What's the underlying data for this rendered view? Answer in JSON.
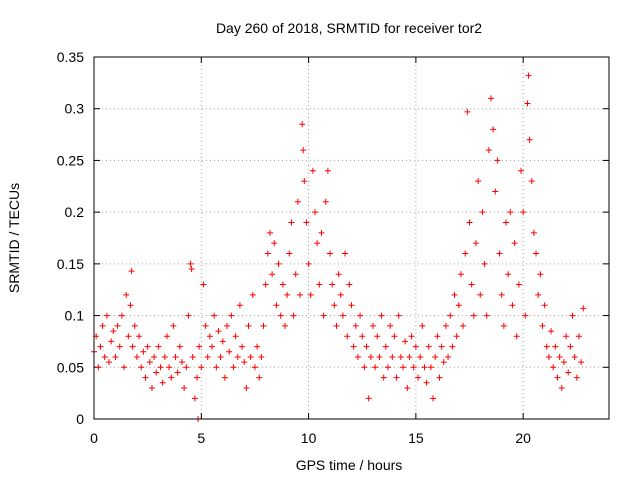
{
  "chart_data": {
    "type": "scatter",
    "title": "Day 260 of 2018, SRMTID for receiver tor2",
    "xlabel": "GPS time / hours",
    "ylabel": "SRMTID / TECUs",
    "xlim": [
      0,
      24
    ],
    "ylim": [
      0,
      0.35
    ],
    "xticks": [
      0,
      5,
      10,
      15,
      20
    ],
    "xtick_labels": [
      "0",
      "5",
      "10",
      "15",
      "20"
    ],
    "yticks": [
      0,
      0.05,
      0.1,
      0.15,
      0.2,
      0.25,
      0.3,
      0.35
    ],
    "ytick_labels": [
      "0",
      "0.05",
      "0.1",
      "0.15",
      "0.2",
      "0.25",
      "0.3",
      "0.35"
    ],
    "grid": true,
    "marker": "+",
    "color": "#ff0000",
    "series": [
      {
        "name": "SRMTID",
        "points": [
          [
            0.0,
            0.065
          ],
          [
            0.1,
            0.08
          ],
          [
            0.2,
            0.05
          ],
          [
            0.3,
            0.07
          ],
          [
            0.4,
            0.09
          ],
          [
            0.5,
            0.06
          ],
          [
            0.6,
            0.1
          ],
          [
            0.7,
            0.055
          ],
          [
            0.8,
            0.075
          ],
          [
            0.9,
            0.085
          ],
          [
            1.0,
            0.06
          ],
          [
            1.1,
            0.09
          ],
          [
            1.2,
            0.07
          ],
          [
            1.3,
            0.1
          ],
          [
            1.4,
            0.05
          ],
          [
            1.5,
            0.12
          ],
          [
            1.6,
            0.08
          ],
          [
            1.7,
            0.11
          ],
          [
            1.75,
            0.143
          ],
          [
            1.8,
            0.07
          ],
          [
            1.9,
            0.09
          ],
          [
            2.0,
            0.06
          ],
          [
            2.1,
            0.08
          ],
          [
            2.2,
            0.05
          ],
          [
            2.3,
            0.065
          ],
          [
            2.4,
            0.04
          ],
          [
            2.5,
            0.07
          ],
          [
            2.6,
            0.055
          ],
          [
            2.7,
            0.03
          ],
          [
            2.8,
            0.06
          ],
          [
            2.9,
            0.045
          ],
          [
            3.0,
            0.07
          ],
          [
            3.1,
            0.05
          ],
          [
            3.2,
            0.035
          ],
          [
            3.3,
            0.06
          ],
          [
            3.4,
            0.08
          ],
          [
            3.5,
            0.05
          ],
          [
            3.6,
            0.04
          ],
          [
            3.7,
            0.09
          ],
          [
            3.8,
            0.06
          ],
          [
            3.9,
            0.045
          ],
          [
            4.0,
            0.07
          ],
          [
            4.1,
            0.055
          ],
          [
            4.2,
            0.03
          ],
          [
            4.3,
            0.05
          ],
          [
            4.4,
            0.1
          ],
          [
            4.5,
            0.15
          ],
          [
            4.55,
            0.145
          ],
          [
            4.6,
            0.06
          ],
          [
            4.7,
            0.02
          ],
          [
            4.8,
            0.04
          ],
          [
            4.85,
            0.0
          ],
          [
            4.9,
            0.07
          ],
          [
            5.0,
            0.05
          ],
          [
            5.1,
            0.13
          ],
          [
            5.2,
            0.09
          ],
          [
            5.3,
            0.06
          ],
          [
            5.4,
            0.08
          ],
          [
            5.5,
            0.07
          ],
          [
            5.6,
            0.1
          ],
          [
            5.7,
            0.05
          ],
          [
            5.8,
            0.085
          ],
          [
            5.9,
            0.06
          ],
          [
            6.0,
            0.075
          ],
          [
            6.1,
            0.04
          ],
          [
            6.2,
            0.09
          ],
          [
            6.3,
            0.065
          ],
          [
            6.4,
            0.1
          ],
          [
            6.5,
            0.05
          ],
          [
            6.6,
            0.08
          ],
          [
            6.7,
            0.06
          ],
          [
            6.8,
            0.11
          ],
          [
            6.9,
            0.07
          ],
          [
            7.0,
            0.055
          ],
          [
            7.1,
            0.03
          ],
          [
            7.2,
            0.09
          ],
          [
            7.3,
            0.06
          ],
          [
            7.4,
            0.12
          ],
          [
            7.5,
            0.05
          ],
          [
            7.6,
            0.07
          ],
          [
            7.7,
            0.04
          ],
          [
            7.8,
            0.06
          ],
          [
            7.9,
            0.09
          ],
          [
            8.0,
            0.13
          ],
          [
            8.1,
            0.16
          ],
          [
            8.2,
            0.18
          ],
          [
            8.3,
            0.14
          ],
          [
            8.4,
            0.17
          ],
          [
            8.5,
            0.11
          ],
          [
            8.6,
            0.15
          ],
          [
            8.7,
            0.1
          ],
          [
            8.8,
            0.13
          ],
          [
            8.9,
            0.09
          ],
          [
            9.0,
            0.12
          ],
          [
            9.1,
            0.16
          ],
          [
            9.2,
            0.19
          ],
          [
            9.3,
            0.1
          ],
          [
            9.4,
            0.14
          ],
          [
            9.5,
            0.21
          ],
          [
            9.6,
            0.12
          ],
          [
            9.7,
            0.285
          ],
          [
            9.75,
            0.26
          ],
          [
            9.8,
            0.23
          ],
          [
            9.9,
            0.19
          ],
          [
            10.0,
            0.15
          ],
          [
            10.1,
            0.12
          ],
          [
            10.2,
            0.24
          ],
          [
            10.3,
            0.2
          ],
          [
            10.4,
            0.17
          ],
          [
            10.5,
            0.13
          ],
          [
            10.6,
            0.18
          ],
          [
            10.7,
            0.1
          ],
          [
            10.8,
            0.21
          ],
          [
            10.9,
            0.24
          ],
          [
            11.0,
            0.16
          ],
          [
            11.1,
            0.13
          ],
          [
            11.2,
            0.11
          ],
          [
            11.3,
            0.09
          ],
          [
            11.4,
            0.14
          ],
          [
            11.5,
            0.12
          ],
          [
            11.6,
            0.1
          ],
          [
            11.7,
            0.16
          ],
          [
            11.8,
            0.08
          ],
          [
            11.9,
            0.13
          ],
          [
            12.0,
            0.11
          ],
          [
            12.1,
            0.07
          ],
          [
            12.2,
            0.09
          ],
          [
            12.3,
            0.06
          ],
          [
            12.4,
            0.1
          ],
          [
            12.5,
            0.08
          ],
          [
            12.6,
            0.05
          ],
          [
            12.7,
            0.07
          ],
          [
            12.8,
            0.02
          ],
          [
            12.9,
            0.06
          ],
          [
            13.0,
            0.09
          ],
          [
            13.1,
            0.05
          ],
          [
            13.2,
            0.08
          ],
          [
            13.3,
            0.06
          ],
          [
            13.4,
            0.1
          ],
          [
            13.5,
            0.04
          ],
          [
            13.6,
            0.07
          ],
          [
            13.7,
            0.05
          ],
          [
            13.8,
            0.09
          ],
          [
            13.9,
            0.06
          ],
          [
            14.0,
            0.08
          ],
          [
            14.1,
            0.04
          ],
          [
            14.2,
            0.1
          ],
          [
            14.3,
            0.06
          ],
          [
            14.4,
            0.05
          ],
          [
            14.5,
            0.075
          ],
          [
            14.6,
            0.03
          ],
          [
            14.7,
            0.06
          ],
          [
            14.8,
            0.08
          ],
          [
            14.9,
            0.05
          ],
          [
            15.0,
            0.07
          ],
          [
            15.1,
            0.04
          ],
          [
            15.2,
            0.06
          ],
          [
            15.3,
            0.09
          ],
          [
            15.4,
            0.05
          ],
          [
            15.5,
            0.035
          ],
          [
            15.6,
            0.07
          ],
          [
            15.7,
            0.05
          ],
          [
            15.8,
            0.02
          ],
          [
            15.9,
            0.06
          ],
          [
            16.0,
            0.08
          ],
          [
            16.1,
            0.04
          ],
          [
            16.2,
            0.07
          ],
          [
            16.3,
            0.055
          ],
          [
            16.4,
            0.09
          ],
          [
            16.5,
            0.06
          ],
          [
            16.6,
            0.1
          ],
          [
            16.7,
            0.07
          ],
          [
            16.8,
            0.12
          ],
          [
            16.9,
            0.08
          ],
          [
            17.0,
            0.11
          ],
          [
            17.1,
            0.14
          ],
          [
            17.2,
            0.09
          ],
          [
            17.3,
            0.16
          ],
          [
            17.4,
            0.297
          ],
          [
            17.5,
            0.19
          ],
          [
            17.6,
            0.13
          ],
          [
            17.7,
            0.1
          ],
          [
            17.8,
            0.17
          ],
          [
            17.9,
            0.23
          ],
          [
            18.0,
            0.12
          ],
          [
            18.1,
            0.2
          ],
          [
            18.2,
            0.15
          ],
          [
            18.3,
            0.1
          ],
          [
            18.4,
            0.26
          ],
          [
            18.5,
            0.31
          ],
          [
            18.6,
            0.28
          ],
          [
            18.7,
            0.22
          ],
          [
            18.8,
            0.25
          ],
          [
            18.9,
            0.16
          ],
          [
            19.0,
            0.12
          ],
          [
            19.1,
            0.09
          ],
          [
            19.2,
            0.19
          ],
          [
            19.3,
            0.14
          ],
          [
            19.4,
            0.2
          ],
          [
            19.5,
            0.11
          ],
          [
            19.6,
            0.17
          ],
          [
            19.7,
            0.08
          ],
          [
            19.8,
            0.13
          ],
          [
            19.9,
            0.24
          ],
          [
            20.0,
            0.2
          ],
          [
            20.1,
            0.1
          ],
          [
            20.2,
            0.305
          ],
          [
            20.25,
            0.332
          ],
          [
            20.3,
            0.27
          ],
          [
            20.4,
            0.23
          ],
          [
            20.5,
            0.18
          ],
          [
            20.6,
            0.16
          ],
          [
            20.7,
            0.12
          ],
          [
            20.8,
            0.14
          ],
          [
            20.9,
            0.09
          ],
          [
            21.0,
            0.11
          ],
          [
            21.1,
            0.07
          ],
          [
            21.2,
            0.06
          ],
          [
            21.3,
            0.085
          ],
          [
            21.4,
            0.05
          ],
          [
            21.5,
            0.07
          ],
          [
            21.6,
            0.04
          ],
          [
            21.7,
            0.06
          ],
          [
            21.8,
            0.03
          ],
          [
            21.9,
            0.055
          ],
          [
            22.0,
            0.08
          ],
          [
            22.1,
            0.045
          ],
          [
            22.2,
            0.07
          ],
          [
            22.3,
            0.1
          ],
          [
            22.4,
            0.06
          ],
          [
            22.5,
            0.04
          ],
          [
            22.6,
            0.08
          ],
          [
            22.7,
            0.055
          ],
          [
            22.8,
            0.107
          ]
        ]
      }
    ]
  }
}
